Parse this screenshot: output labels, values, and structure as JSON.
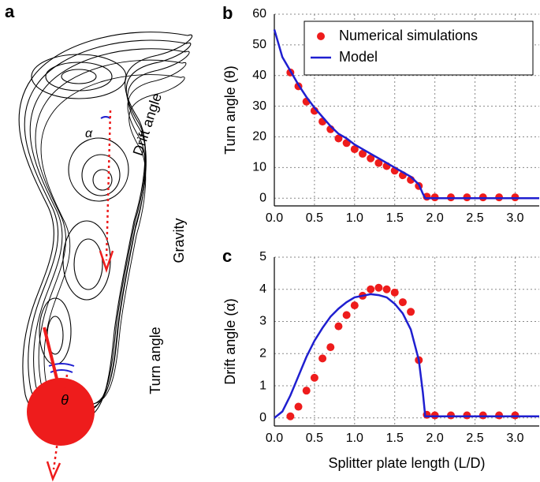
{
  "panel_a": {
    "label": "a",
    "annotations": [
      "α",
      "Drift angle",
      "Gravity",
      "Turn angle",
      "θ"
    ]
  },
  "chart_data": [
    {
      "type": "scatter",
      "panel_label": "b",
      "y_label": "Turn angle (θ)",
      "xlim": [
        0,
        3.3
      ],
      "ylim": [
        -2.5,
        60
      ],
      "xticks": [
        {
          "value": 0,
          "label": "0.0"
        },
        0.5,
        {
          "value": 1,
          "label": "1.0"
        },
        1.5,
        {
          "value": 2,
          "label": "2.0"
        },
        2.5,
        {
          "value": 3,
          "label": "3.0"
        }
      ],
      "yticks": [
        0,
        10,
        20,
        30,
        40,
        50,
        60
      ],
      "grid": true,
      "legend": "upper right",
      "series": [
        {
          "name": "Numerical simulations",
          "mode": "markers",
          "color": "#ee1c1c",
          "x": [
            0.2,
            0.3,
            0.4,
            0.5,
            0.6,
            0.7,
            0.8,
            0.9,
            1.0,
            1.1,
            1.2,
            1.3,
            1.4,
            1.5,
            1.6,
            1.7,
            1.8,
            1.9,
            2.0,
            2.2,
            2.4,
            2.6,
            2.8,
            3.0
          ],
          "values": [
            41,
            36.5,
            31.5,
            28.5,
            25,
            22.5,
            19.5,
            18,
            16,
            14.5,
            13,
            11.5,
            10.5,
            9,
            7.5,
            6,
            4,
            0.5,
            0.3,
            0.3,
            0.3,
            0.3,
            0.3,
            0.3
          ]
        },
        {
          "name": "Model",
          "mode": "lines",
          "color": "#1f1fd0",
          "x": [
            0,
            0.1,
            0.2,
            0.3,
            0.4,
            0.5,
            0.6,
            0.7,
            0.8,
            0.9,
            1.0,
            1.1,
            1.2,
            1.3,
            1.4,
            1.5,
            1.6,
            1.7,
            1.8,
            1.85,
            1.88,
            2.0,
            3.3
          ],
          "values": [
            55,
            46,
            41.5,
            37,
            33,
            29.5,
            26.5,
            23.5,
            21,
            19.5,
            17.5,
            16,
            14.5,
            13,
            11.5,
            10,
            8.5,
            7,
            4.5,
            1.5,
            0,
            0,
            0
          ]
        }
      ]
    },
    {
      "type": "scatter",
      "panel_label": "c",
      "y_label": "Drift angle (α)",
      "x_label": "Splitter plate length (L/D)",
      "xlim": [
        0,
        3.3
      ],
      "ylim": [
        -0.25,
        5
      ],
      "xticks": [
        {
          "value": 0,
          "label": "0.0"
        },
        0.5,
        {
          "value": 1,
          "label": "1.0"
        },
        1.5,
        {
          "value": 2,
          "label": "2.0"
        },
        2.5,
        {
          "value": 3,
          "label": "3.0"
        }
      ],
      "yticks": [
        0,
        1,
        2,
        3,
        4,
        5
      ],
      "grid": true,
      "series": [
        {
          "mode": "markers",
          "color": "#ee1c1c",
          "x": [
            0.2,
            0.3,
            0.4,
            0.5,
            0.6,
            0.7,
            0.8,
            0.9,
            1.0,
            1.1,
            1.2,
            1.3,
            1.4,
            1.5,
            1.6,
            1.7,
            1.8,
            1.9,
            2.0,
            2.2,
            2.4,
            2.6,
            2.8,
            3.0
          ],
          "values": [
            0.05,
            0.35,
            0.85,
            1.25,
            1.85,
            2.2,
            2.85,
            3.2,
            3.5,
            3.8,
            4.0,
            4.05,
            4.0,
            3.9,
            3.6,
            3.3,
            1.8,
            0.1,
            0.08,
            0.08,
            0.08,
            0.08,
            0.08,
            0.08
          ]
        },
        {
          "mode": "lines",
          "color": "#1f1fd0",
          "x": [
            0,
            0.1,
            0.2,
            0.3,
            0.4,
            0.5,
            0.6,
            0.7,
            0.8,
            0.9,
            1.0,
            1.1,
            1.2,
            1.3,
            1.4,
            1.5,
            1.6,
            1.7,
            1.8,
            1.85,
            1.88,
            3.3
          ],
          "values": [
            0,
            0.2,
            0.7,
            1.3,
            1.9,
            2.4,
            2.8,
            3.15,
            3.4,
            3.6,
            3.75,
            3.8,
            3.85,
            3.82,
            3.75,
            3.55,
            3.25,
            2.75,
            1.8,
            0.8,
            0.05,
            0.05
          ]
        }
      ]
    }
  ]
}
